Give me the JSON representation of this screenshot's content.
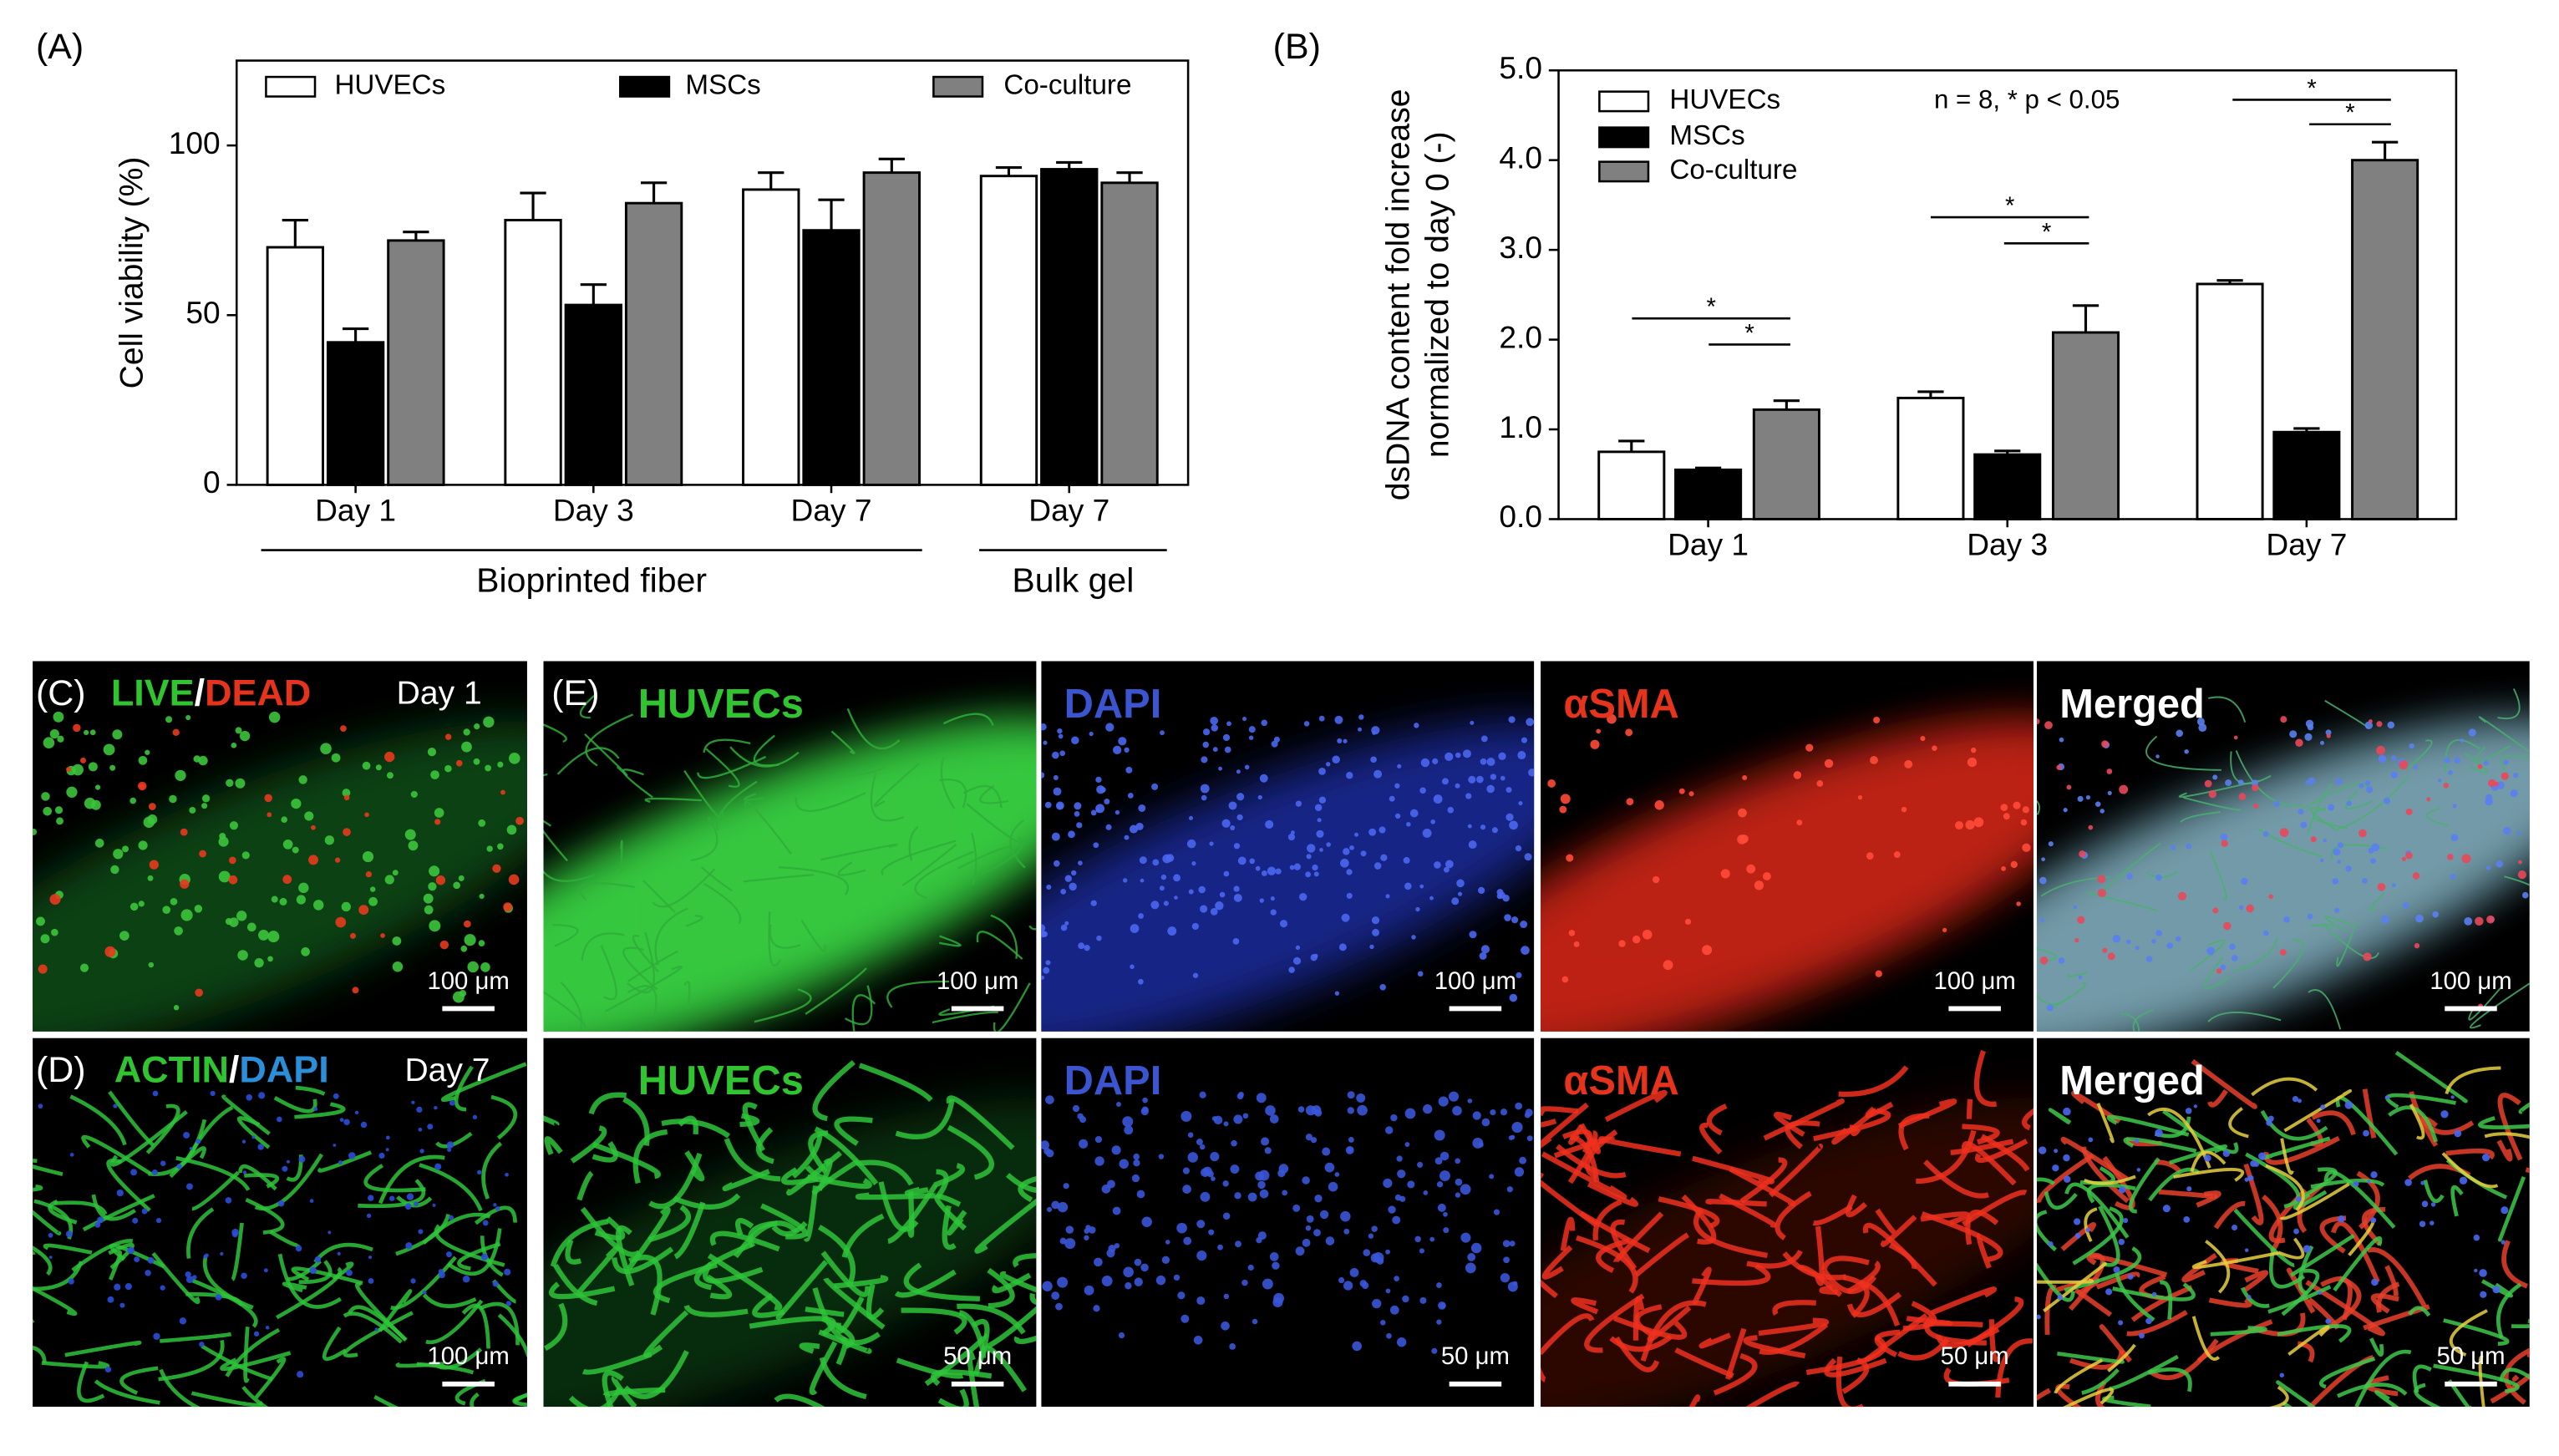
{
  "chart_data": [
    {
      "type": "bar",
      "panel_label": "(A)",
      "ylabel": "Cell viability (%)",
      "categories": [
        "Day 1",
        "Day 3",
        "Day 7",
        "Day 7"
      ],
      "group_labels": [
        "Bioprinted fiber",
        "Bulk gel"
      ],
      "series": [
        {
          "name": "HUVECs",
          "color": "#ffffff",
          "values": [
            70,
            78,
            87,
            91
          ],
          "errors": [
            8,
            8,
            5,
            2.5
          ]
        },
        {
          "name": "MSCs",
          "color": "#000000",
          "values": [
            42,
            53,
            75,
            93
          ],
          "errors": [
            4,
            6,
            9,
            2
          ]
        },
        {
          "name": "Co-culture",
          "color": "#808080",
          "values": [
            72,
            83,
            92,
            89
          ],
          "errors": [
            2.5,
            6,
            4,
            3
          ]
        }
      ],
      "ylim": [
        0,
        125
      ],
      "yticks": [
        0,
        50,
        100
      ]
    },
    {
      "type": "bar",
      "panel_label": "(B)",
      "ylabel": [
        "dsDNA content fold increase",
        "normalized to day 0  (-)"
      ],
      "annotation": "n = 8, * p < 0.05",
      "significance_label": "*",
      "categories": [
        "Day 1",
        "Day 3",
        "Day 7"
      ],
      "series": [
        {
          "name": "HUVECs",
          "color": "#ffffff",
          "values": [
            0.75,
            1.35,
            2.62
          ],
          "errors": [
            0.12,
            0.07,
            0.04
          ]
        },
        {
          "name": "MSCs",
          "color": "#000000",
          "values": [
            0.55,
            0.72,
            0.97
          ],
          "errors": [
            0.02,
            0.04,
            0.04
          ]
        },
        {
          "name": "Co-culture",
          "color": "#808080",
          "values": [
            1.22,
            2.08,
            4.0
          ],
          "errors": [
            0.1,
            0.3,
            0.2
          ]
        }
      ],
      "ylim": [
        0,
        5
      ],
      "yticks": [
        {
          "value": 0,
          "label": "0.0"
        },
        {
          "value": 1,
          "label": "1.0"
        },
        {
          "value": 2,
          "label": "2.0"
        },
        {
          "value": 3,
          "label": "3.0"
        },
        {
          "value": 4,
          "label": "4.0"
        },
        {
          "value": 5,
          "label": "5.0"
        }
      ]
    }
  ],
  "panels": [
    {
      "label": "(C)",
      "stains": [
        "LIVE",
        "/",
        "DEAD"
      ],
      "day": "Day 1",
      "scale_bar": "100 μm"
    },
    {
      "label": "(D)",
      "stains": [
        "ACTIN",
        "/",
        "DAPI"
      ],
      "day": "Day 7",
      "scale_bar": "100 μm"
    },
    {
      "label": "(E)",
      "channels": [
        "HUVECs",
        "DAPI",
        "αSMA",
        "Merged"
      ],
      "scale_bars": [
        "100 μm",
        "50 μm"
      ]
    }
  ]
}
